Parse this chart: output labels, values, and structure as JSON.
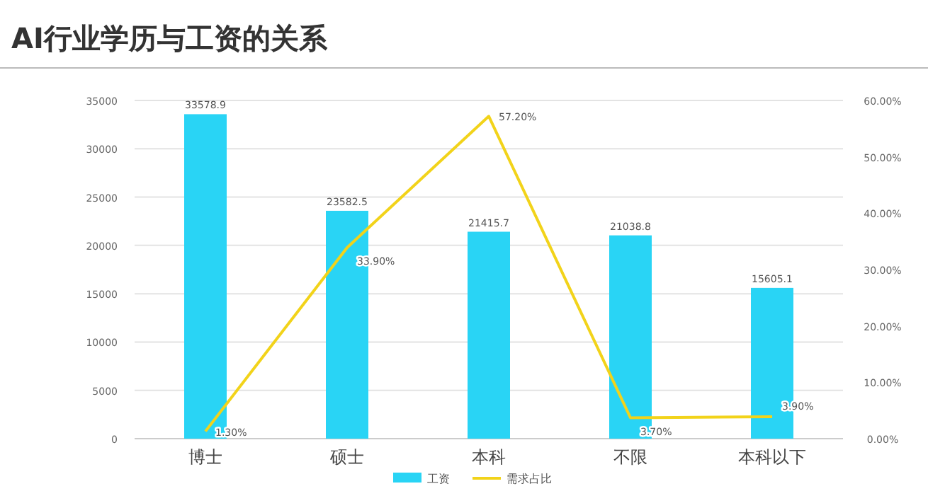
{
  "chart_data": {
    "type": "bar",
    "title": "AI行业学历与工资的关系",
    "categories": [
      "博士",
      "硕士",
      "本科",
      "不限",
      "本科以下"
    ],
    "series": [
      {
        "name": "工资",
        "color": "#29d4f5",
        "values": [
          33578.9,
          23582.5,
          21415.7,
          21038.8,
          15605.1
        ],
        "value_labels": [
          "33578.9",
          "23582.5",
          "21415.7",
          "21038.8",
          "15605.1"
        ]
      },
      {
        "name": "需求占比",
        "type": "line",
        "axis": "y2",
        "color": "#f2d31a",
        "values": [
          1.3,
          33.9,
          57.2,
          3.7,
          3.9
        ],
        "value_labels": [
          "1.30%",
          "33.90%",
          "57.20%",
          "3.70%",
          "3.90%"
        ]
      }
    ],
    "ylim": [
      0,
      35000
    ],
    "yticks": [
      0,
      5000,
      10000,
      15000,
      20000,
      25000,
      30000,
      35000
    ],
    "y2lim": [
      0,
      60
    ],
    "y2ticks": [
      {
        "value": 0,
        "label": "0.00%"
      },
      {
        "value": 10,
        "label": "10.00%"
      },
      {
        "value": 20,
        "label": "20.00%"
      },
      {
        "value": 30,
        "label": "30.00%"
      },
      {
        "value": 40,
        "label": "40.00%"
      },
      {
        "value": 50,
        "label": "50.00%"
      },
      {
        "value": 60,
        "label": "60.00%"
      }
    ],
    "grid": "y",
    "legend": "bottom",
    "marker": "none"
  }
}
